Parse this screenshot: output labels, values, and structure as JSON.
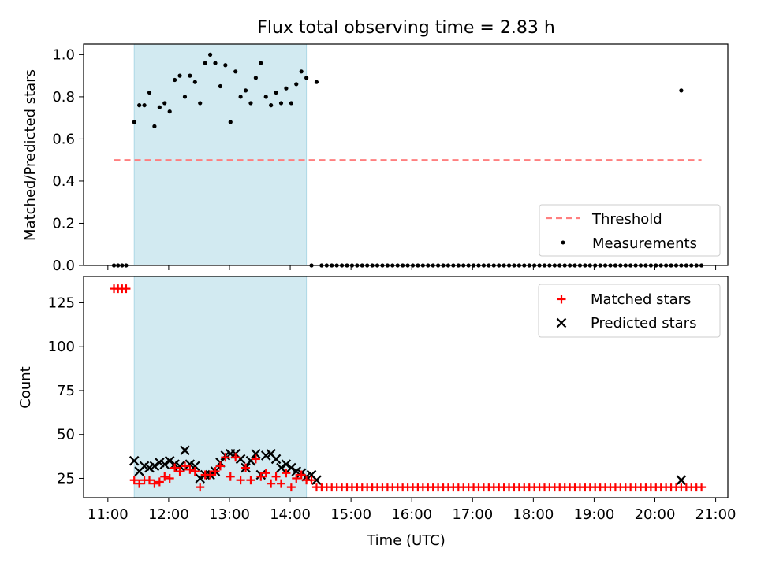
{
  "title": "Flux total observing time = 2.83 h",
  "colors": {
    "threshold": "#ff7f7f",
    "measurement": "#000000",
    "matched": "#ff0000",
    "predicted": "#000000",
    "span_fill": "#add8e6"
  },
  "chart_data": [
    {
      "type": "scatter",
      "panel": "top",
      "title": "Flux total observing time = 2.83 h",
      "xlabel": "",
      "ylabel": "Matched/Predicted stars",
      "xlim": [
        "10:36",
        "21:12"
      ],
      "ylim": [
        0,
        1.05
      ],
      "yticks": [
        "0.0",
        "0.2",
        "0.4",
        "0.6",
        "0.8",
        "1.0"
      ],
      "observing_span": [
        "11:26",
        "14:16"
      ],
      "legend_position": "lower right",
      "legend": [
        "Threshold",
        "Measurements"
      ],
      "threshold": {
        "name": "Threshold",
        "value": 0.5,
        "x_range": [
          "11:06",
          "20:46"
        ]
      },
      "series": [
        {
          "name": "Measurements",
          "x": [
            "11:06",
            "11:10",
            "11:14",
            "11:18",
            "11:26",
            "11:31",
            "11:36",
            "11:41",
            "11:46",
            "11:51",
            "11:56",
            "12:01",
            "12:06",
            "12:11",
            "12:16",
            "12:21",
            "12:26",
            "12:31",
            "12:36",
            "12:41",
            "12:46",
            "12:51",
            "12:56",
            "13:01",
            "13:06",
            "13:11",
            "13:16",
            "13:21",
            "13:26",
            "13:31",
            "13:36",
            "13:41",
            "13:46",
            "13:51",
            "13:56",
            "14:01",
            "14:06",
            "14:11",
            "14:16",
            "14:21",
            "14:26",
            "20:26"
          ],
          "y": [
            0,
            0,
            0,
            0,
            0.68,
            0.76,
            0.76,
            0.82,
            0.66,
            0.75,
            0.77,
            0.73,
            0.88,
            0.9,
            0.8,
            0.9,
            0.87,
            0.77,
            0.96,
            1.0,
            0.96,
            0.85,
            0.95,
            0.68,
            0.92,
            0.8,
            0.83,
            0.77,
            0.89,
            0.96,
            0.8,
            0.76,
            0.82,
            0.77,
            0.84,
            0.77,
            0.86,
            0.92,
            0.89,
            0,
            0.87,
            0.83
          ],
          "zeros_from_to": [
            "14:31",
            "20:46"
          ],
          "zeros_step_minutes": 5
        }
      ]
    },
    {
      "type": "scatter",
      "panel": "bottom",
      "xlabel": "Time (UTC)",
      "ylabel": "Count",
      "xlim": [
        "10:36",
        "21:12"
      ],
      "ylim": [
        14,
        140
      ],
      "xticks": [
        "11:00",
        "12:00",
        "13:00",
        "14:00",
        "15:00",
        "16:00",
        "17:00",
        "18:00",
        "19:00",
        "20:00",
        "21:00"
      ],
      "yticks": [
        "25",
        "50",
        "75",
        "100",
        "125"
      ],
      "observing_span": [
        "11:26",
        "14:16"
      ],
      "legend_position": "upper right",
      "legend": [
        "Matched stars",
        "Predicted stars"
      ],
      "series": [
        {
          "name": "Matched stars",
          "marker": "+",
          "x": [
            "11:06",
            "11:10",
            "11:14",
            "11:18",
            "11:26",
            "11:31",
            "11:36",
            "11:41",
            "11:46",
            "11:51",
            "11:56",
            "12:01",
            "12:06",
            "12:11",
            "12:16",
            "12:21",
            "12:26",
            "12:31",
            "12:36",
            "12:41",
            "12:46",
            "12:51",
            "12:56",
            "13:01",
            "13:06",
            "13:11",
            "13:16",
            "13:21",
            "13:26",
            "13:31",
            "13:36",
            "13:41",
            "13:46",
            "13:51",
            "13:56",
            "14:01",
            "14:06",
            "14:11",
            "14:16",
            "14:21",
            "14:26"
          ],
          "y": [
            133,
            133,
            133,
            133,
            24,
            22,
            24,
            24,
            22,
            23,
            26,
            25,
            31,
            29,
            32,
            30,
            29,
            20,
            27,
            27,
            29,
            32,
            37,
            26,
            37,
            24,
            31,
            24,
            36,
            26,
            28,
            22,
            26,
            22,
            28,
            20,
            25,
            27,
            24,
            24,
            20
          ],
          "constant_from_to": [
            "14:31",
            "20:46"
          ],
          "constant_value": 20,
          "constant_step_minutes": 5
        },
        {
          "name": "Predicted stars",
          "marker": "x",
          "x": [
            "11:26",
            "11:31",
            "11:36",
            "11:41",
            "11:46",
            "11:51",
            "11:56",
            "12:01",
            "12:06",
            "12:11",
            "12:16",
            "12:21",
            "12:26",
            "12:31",
            "12:36",
            "12:41",
            "12:46",
            "12:51",
            "12:56",
            "13:01",
            "13:06",
            "13:11",
            "13:16",
            "13:21",
            "13:26",
            "13:31",
            "13:36",
            "13:41",
            "13:46",
            "13:51",
            "13:56",
            "14:01",
            "14:06",
            "14:11",
            "14:16",
            "14:21",
            "14:26",
            "20:26"
          ],
          "y": [
            35,
            29,
            32,
            31,
            32,
            34,
            33,
            35,
            33,
            32,
            41,
            33,
            32,
            25,
            27,
            27,
            29,
            34,
            38,
            39,
            39,
            36,
            31,
            35,
            39,
            27,
            38,
            39,
            36,
            31,
            33,
            31,
            29,
            28,
            26,
            27,
            24,
            24
          ]
        }
      ]
    }
  ]
}
